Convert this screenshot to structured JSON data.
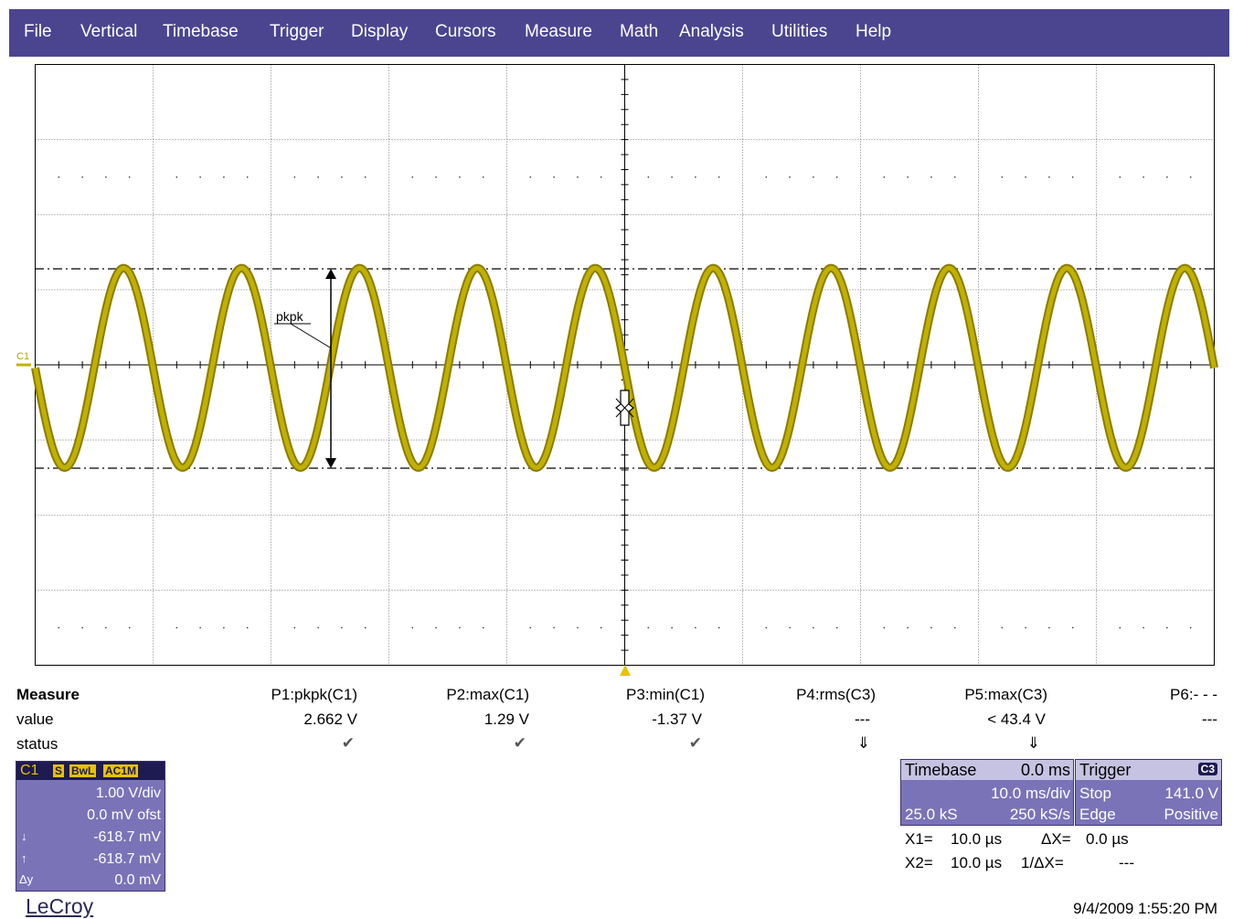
{
  "menu": [
    "File",
    "Vertical",
    "Timebase",
    "Trigger",
    "Display",
    "Cursors",
    "Measure",
    "Math",
    "Analysis",
    "Utilities",
    "Help"
  ],
  "colors": {
    "menubar": "#4b4590",
    "trace": "#b5a400",
    "panel": "#7a73b8"
  },
  "waveform": {
    "channel_label": "C1",
    "annotation": "pkpk",
    "frequency_hz": 100,
    "amplitude_max_v": 1.29,
    "amplitude_min_v": -1.37
  },
  "measure": {
    "title": "Measure",
    "row_labels": {
      "value": "value",
      "status": "status"
    },
    "params": [
      {
        "name": "P1:pkpk(C1)",
        "value": "2.662 V",
        "status": "✔"
      },
      {
        "name": "P2:max(C1)",
        "value": "1.29 V",
        "status": "✔"
      },
      {
        "name": "P3:min(C1)",
        "value": "-1.37 V",
        "status": "✔"
      },
      {
        "name": "P4:rms(C3)",
        "value": "---",
        "status": "⇓"
      },
      {
        "name": "P5:max(C3)",
        "value": "< 43.4 V",
        "status": "⇓"
      },
      {
        "name": "P6:- - -",
        "value": "---",
        "status": ""
      }
    ]
  },
  "channel": {
    "name": "C1",
    "tags": [
      "S",
      "BwL",
      "AC1M"
    ],
    "vdiv": "1.00 V/div",
    "offset": "0.0 mV ofst",
    "cursor1_symbol": "↓",
    "cursor1": "-618.7 mV",
    "cursor2_symbol": "↑",
    "cursor2": "-618.7 mV",
    "dy_label": "Δy",
    "dy": "0.0 mV"
  },
  "timebase": {
    "title": "Timebase",
    "delay": "0.0 ms",
    "tdiv": "10.0 ms/div",
    "samples": "25.0 kS",
    "rate": "250 kS/s"
  },
  "trigger": {
    "title": "Trigger",
    "source": "C3",
    "mode": "Stop",
    "level": "141.0 V",
    "type": "Edge",
    "slope": "Positive"
  },
  "cursors": {
    "x1_label": "X1=",
    "x1": "10.0 µs",
    "dx_label": "ΔX=",
    "dx": "0.0 µs",
    "x2_label": "X2=",
    "x2": "10.0 µs",
    "inv_label": "1/ΔX=",
    "inv": "---"
  },
  "footer": {
    "brand": "LeCroy",
    "timestamp": "9/4/2009 1:55:20 PM"
  }
}
